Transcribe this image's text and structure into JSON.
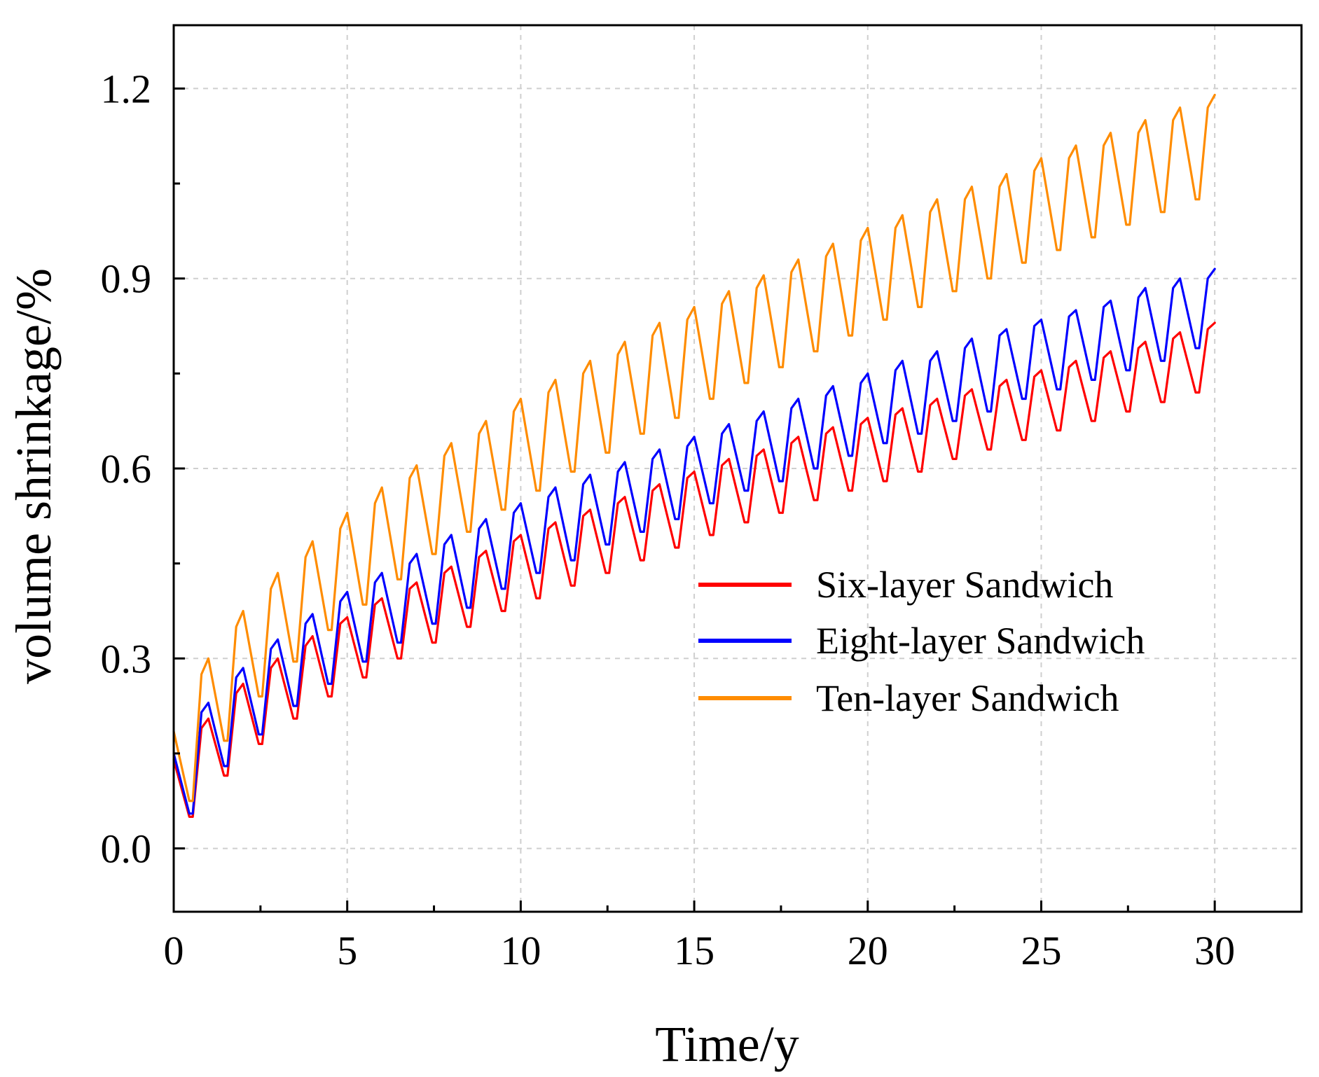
{
  "chart_data": {
    "type": "line",
    "title": "",
    "xlabel": "Time/y",
    "ylabel": "volume shrinkage/%",
    "xlim": [
      0,
      32.5
    ],
    "ylim": [
      -0.1,
      1.3
    ],
    "xticks": [
      0,
      5,
      10,
      15,
      20,
      25,
      30
    ],
    "xtick_labels": [
      "0",
      "5",
      "10",
      "15",
      "20",
      "25",
      "30"
    ],
    "yticks": [
      0.0,
      0.3,
      0.6,
      0.9,
      1.2
    ],
    "ytick_labels": [
      "0.0",
      "0.3",
      "0.6",
      "0.9",
      "1.2"
    ],
    "grid": true,
    "legend_position": "center-right",
    "series": [
      {
        "name": "Six-layer Sandwich",
        "color": "#ff0000",
        "x": [
          0,
          0.45,
          0.55,
          0.8,
          1,
          1.45,
          1.55,
          1.8,
          2,
          2.45,
          2.55,
          2.8,
          3,
          3.45,
          3.55,
          3.8,
          4,
          4.45,
          4.55,
          4.8,
          5,
          5.45,
          5.55,
          5.8,
          6,
          6.45,
          6.55,
          6.8,
          7,
          7.45,
          7.55,
          7.8,
          8,
          8.45,
          8.55,
          8.8,
          9,
          9.45,
          9.55,
          9.8,
          10,
          10.45,
          10.55,
          10.8,
          11,
          11.45,
          11.55,
          11.8,
          12,
          12.45,
          12.55,
          12.8,
          13,
          13.45,
          13.55,
          13.8,
          14,
          14.45,
          14.55,
          14.8,
          15,
          15.45,
          15.55,
          15.8,
          16,
          16.45,
          16.55,
          16.8,
          17,
          17.45,
          17.55,
          17.8,
          18,
          18.45,
          18.55,
          18.8,
          19,
          19.45,
          19.55,
          19.8,
          20,
          20.45,
          20.55,
          20.8,
          21,
          21.45,
          21.55,
          21.8,
          22,
          22.45,
          22.55,
          22.8,
          23,
          23.45,
          23.55,
          23.8,
          24,
          24.45,
          24.55,
          24.8,
          25,
          25.45,
          25.55,
          25.8,
          26,
          26.45,
          26.55,
          26.8,
          27,
          27.45,
          27.55,
          27.8,
          28,
          28.45,
          28.55,
          28.8,
          29,
          29.45,
          29.55,
          29.8,
          30
        ],
        "y": [
          0.14,
          0.05,
          0.05,
          0.19,
          0.205,
          0.115,
          0.115,
          0.245,
          0.26,
          0.165,
          0.165,
          0.285,
          0.3,
          0.205,
          0.205,
          0.32,
          0.335,
          0.24,
          0.24,
          0.355,
          0.365,
          0.27,
          0.27,
          0.385,
          0.395,
          0.3,
          0.3,
          0.41,
          0.42,
          0.325,
          0.325,
          0.435,
          0.445,
          0.35,
          0.35,
          0.46,
          0.47,
          0.375,
          0.375,
          0.485,
          0.495,
          0.395,
          0.395,
          0.505,
          0.515,
          0.415,
          0.415,
          0.525,
          0.535,
          0.435,
          0.435,
          0.545,
          0.555,
          0.455,
          0.455,
          0.565,
          0.575,
          0.475,
          0.475,
          0.585,
          0.595,
          0.495,
          0.495,
          0.605,
          0.615,
          0.515,
          0.515,
          0.62,
          0.63,
          0.53,
          0.53,
          0.64,
          0.65,
          0.55,
          0.55,
          0.655,
          0.665,
          0.565,
          0.565,
          0.67,
          0.68,
          0.58,
          0.58,
          0.685,
          0.695,
          0.595,
          0.595,
          0.7,
          0.71,
          0.615,
          0.615,
          0.715,
          0.725,
          0.63,
          0.63,
          0.73,
          0.74,
          0.645,
          0.645,
          0.745,
          0.755,
          0.66,
          0.66,
          0.76,
          0.77,
          0.675,
          0.675,
          0.775,
          0.785,
          0.69,
          0.69,
          0.79,
          0.8,
          0.705,
          0.705,
          0.805,
          0.815,
          0.72,
          0.72,
          0.82,
          0.83
        ]
      },
      {
        "name": "Eight-layer Sandwich",
        "color": "#0000ff",
        "x": [
          0,
          0.45,
          0.55,
          0.8,
          1,
          1.45,
          1.55,
          1.8,
          2,
          2.45,
          2.55,
          2.8,
          3,
          3.45,
          3.55,
          3.8,
          4,
          4.45,
          4.55,
          4.8,
          5,
          5.45,
          5.55,
          5.8,
          6,
          6.45,
          6.55,
          6.8,
          7,
          7.45,
          7.55,
          7.8,
          8,
          8.45,
          8.55,
          8.8,
          9,
          9.45,
          9.55,
          9.8,
          10,
          10.45,
          10.55,
          10.8,
          11,
          11.45,
          11.55,
          11.8,
          12,
          12.45,
          12.55,
          12.8,
          13,
          13.45,
          13.55,
          13.8,
          14,
          14.45,
          14.55,
          14.8,
          15,
          15.45,
          15.55,
          15.8,
          16,
          16.45,
          16.55,
          16.8,
          17,
          17.45,
          17.55,
          17.8,
          18,
          18.45,
          18.55,
          18.8,
          19,
          19.45,
          19.55,
          19.8,
          20,
          20.45,
          20.55,
          20.8,
          21,
          21.45,
          21.55,
          21.8,
          22,
          22.45,
          22.55,
          22.8,
          23,
          23.45,
          23.55,
          23.8,
          24,
          24.45,
          24.55,
          24.8,
          25,
          25.45,
          25.55,
          25.8,
          26,
          26.45,
          26.55,
          26.8,
          27,
          27.45,
          27.55,
          27.8,
          28,
          28.45,
          28.55,
          28.8,
          29,
          29.45,
          29.55,
          29.8,
          30
        ],
        "y": [
          0.15,
          0.055,
          0.055,
          0.215,
          0.23,
          0.13,
          0.13,
          0.27,
          0.285,
          0.18,
          0.18,
          0.315,
          0.33,
          0.225,
          0.225,
          0.355,
          0.37,
          0.26,
          0.26,
          0.39,
          0.405,
          0.295,
          0.295,
          0.42,
          0.435,
          0.325,
          0.325,
          0.45,
          0.465,
          0.355,
          0.355,
          0.48,
          0.495,
          0.38,
          0.38,
          0.505,
          0.52,
          0.41,
          0.41,
          0.53,
          0.545,
          0.435,
          0.435,
          0.555,
          0.57,
          0.455,
          0.455,
          0.575,
          0.59,
          0.48,
          0.48,
          0.595,
          0.61,
          0.5,
          0.5,
          0.615,
          0.63,
          0.52,
          0.52,
          0.635,
          0.65,
          0.545,
          0.545,
          0.655,
          0.67,
          0.565,
          0.565,
          0.675,
          0.69,
          0.58,
          0.58,
          0.695,
          0.71,
          0.6,
          0.6,
          0.715,
          0.73,
          0.62,
          0.62,
          0.735,
          0.75,
          0.64,
          0.64,
          0.755,
          0.77,
          0.655,
          0.655,
          0.77,
          0.785,
          0.675,
          0.675,
          0.79,
          0.805,
          0.69,
          0.69,
          0.81,
          0.82,
          0.71,
          0.71,
          0.825,
          0.835,
          0.725,
          0.725,
          0.84,
          0.85,
          0.74,
          0.74,
          0.855,
          0.865,
          0.755,
          0.755,
          0.87,
          0.885,
          0.77,
          0.77,
          0.885,
          0.9,
          0.79,
          0.79,
          0.9,
          0.915
        ]
      },
      {
        "name": "Ten-layer Sandwich",
        "color": "#ff8c00",
        "x": [
          0,
          0.45,
          0.55,
          0.8,
          1,
          1.45,
          1.55,
          1.8,
          2,
          2.45,
          2.55,
          2.8,
          3,
          3.45,
          3.55,
          3.8,
          4,
          4.45,
          4.55,
          4.8,
          5,
          5.45,
          5.55,
          5.8,
          6,
          6.45,
          6.55,
          6.8,
          7,
          7.45,
          7.55,
          7.8,
          8,
          8.45,
          8.55,
          8.8,
          9,
          9.45,
          9.55,
          9.8,
          10,
          10.45,
          10.55,
          10.8,
          11,
          11.45,
          11.55,
          11.8,
          12,
          12.45,
          12.55,
          12.8,
          13,
          13.45,
          13.55,
          13.8,
          14,
          14.45,
          14.55,
          14.8,
          15,
          15.45,
          15.55,
          15.8,
          16,
          16.45,
          16.55,
          16.8,
          17,
          17.45,
          17.55,
          17.8,
          18,
          18.45,
          18.55,
          18.8,
          19,
          19.45,
          19.55,
          19.8,
          20,
          20.45,
          20.55,
          20.8,
          21,
          21.45,
          21.55,
          21.8,
          22,
          22.45,
          22.55,
          22.8,
          23,
          23.45,
          23.55,
          23.8,
          24,
          24.45,
          24.55,
          24.8,
          25,
          25.45,
          25.55,
          25.8,
          26,
          26.45,
          26.55,
          26.8,
          27,
          27.45,
          27.55,
          27.8,
          28,
          28.45,
          28.55,
          28.8,
          29,
          29.45,
          29.55,
          29.8,
          30
        ],
        "y": [
          0.185,
          0.075,
          0.075,
          0.275,
          0.3,
          0.17,
          0.17,
          0.35,
          0.375,
          0.24,
          0.24,
          0.41,
          0.435,
          0.295,
          0.295,
          0.46,
          0.485,
          0.345,
          0.345,
          0.505,
          0.53,
          0.385,
          0.385,
          0.545,
          0.57,
          0.425,
          0.425,
          0.585,
          0.605,
          0.465,
          0.465,
          0.62,
          0.64,
          0.5,
          0.5,
          0.655,
          0.675,
          0.535,
          0.535,
          0.69,
          0.71,
          0.565,
          0.565,
          0.72,
          0.74,
          0.595,
          0.595,
          0.75,
          0.77,
          0.625,
          0.625,
          0.78,
          0.8,
          0.655,
          0.655,
          0.81,
          0.83,
          0.68,
          0.68,
          0.835,
          0.855,
          0.71,
          0.71,
          0.86,
          0.88,
          0.735,
          0.735,
          0.885,
          0.905,
          0.76,
          0.76,
          0.91,
          0.93,
          0.785,
          0.785,
          0.935,
          0.955,
          0.81,
          0.81,
          0.96,
          0.98,
          0.835,
          0.835,
          0.98,
          1.0,
          0.855,
          0.855,
          1.005,
          1.025,
          0.88,
          0.88,
          1.025,
          1.045,
          0.9,
          0.9,
          1.045,
          1.065,
          0.925,
          0.925,
          1.07,
          1.09,
          0.945,
          0.945,
          1.09,
          1.11,
          0.965,
          0.965,
          1.11,
          1.13,
          0.985,
          0.985,
          1.13,
          1.15,
          1.005,
          1.005,
          1.15,
          1.17,
          1.025,
          1.025,
          1.17,
          1.19
        ]
      }
    ]
  }
}
